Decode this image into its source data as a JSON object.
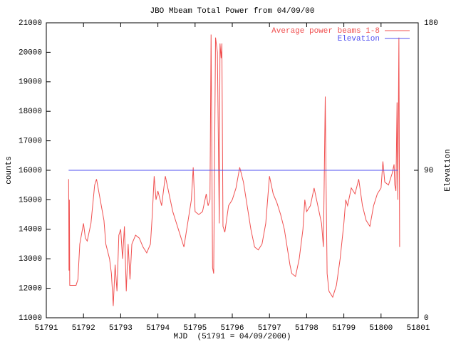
{
  "chart_data": {
    "type": "line",
    "title": "JBO Mbeam Total Power from 04/09/00",
    "x_label": "MJD  (51791 = 04/09/2000)",
    "y_label": "counts",
    "y2_label": "Elevation",
    "xlim": [
      51791,
      51801
    ],
    "xticks": [
      51791,
      51792,
      51793,
      51794,
      51795,
      51796,
      51797,
      51798,
      51799,
      51800,
      51801
    ],
    "ylim": [
      11000,
      21000
    ],
    "yticks": [
      11000,
      12000,
      13000,
      14000,
      15000,
      16000,
      17000,
      18000,
      19000,
      20000,
      21000
    ],
    "y2lim": [
      0,
      180
    ],
    "y2ticks": [
      0,
      90,
      180
    ],
    "grid": false,
    "legend": "top-right",
    "series": [
      {
        "name": "Average power beams 1-8",
        "color": "#f05050",
        "x": [
          51791.6,
          51791.61,
          51791.62,
          51791.63,
          51791.65,
          51791.7,
          51791.8,
          51791.85,
          51791.9,
          51792.0,
          51792.05,
          51792.1,
          51792.2,
          51792.3,
          51792.35,
          51792.45,
          51792.55,
          51792.6,
          51792.7,
          51792.75,
          51792.8,
          51792.85,
          51792.9,
          51792.95,
          51793.0,
          51793.05,
          51793.1,
          51793.15,
          51793.2,
          51793.25,
          51793.3,
          51793.4,
          51793.5,
          51793.6,
          51793.7,
          51793.8,
          51793.85,
          51793.9,
          51793.95,
          51794.0,
          51794.1,
          51794.2,
          51794.3,
          51794.4,
          51794.5,
          51794.6,
          51794.7,
          51794.8,
          51794.9,
          51794.95,
          51795.0,
          51795.1,
          51795.2,
          51795.3,
          51795.35,
          51795.4,
          51795.43,
          51795.47,
          51795.5,
          51795.55,
          51795.6,
          51795.65,
          51795.67,
          51795.7,
          51795.72,
          51795.75,
          51795.8,
          51795.9,
          51796.0,
          51796.1,
          51796.2,
          51796.3,
          51796.4,
          51796.5,
          51796.6,
          51796.7,
          51796.8,
          51796.9,
          51796.95,
          51797.0,
          51797.1,
          51797.2,
          51797.3,
          51797.4,
          51797.5,
          51797.55,
          51797.6,
          51797.7,
          51797.8,
          51797.9,
          51797.95,
          51798.0,
          51798.1,
          51798.2,
          51798.3,
          51798.4,
          51798.45,
          51798.5,
          51798.52,
          51798.55,
          51798.6,
          51798.7,
          51798.8,
          51798.9,
          51799.0,
          51799.05,
          51799.1,
          51799.2,
          51799.3,
          51799.4,
          51799.5,
          51799.6,
          51799.7,
          51799.8,
          51799.9,
          51800.0,
          51800.05,
          51800.1,
          51800.2,
          51800.3,
          51800.35,
          51800.37,
          51800.4,
          51800.43,
          51800.45,
          51800.48,
          51800.5
        ],
        "values": [
          15700,
          12600,
          15000,
          12100,
          12100,
          12100,
          12100,
          12300,
          13500,
          14200,
          13700,
          13600,
          14200,
          15500,
          15700,
          15000,
          14300,
          13500,
          13000,
          12500,
          11400,
          12800,
          11900,
          13800,
          14000,
          13000,
          14100,
          11900,
          13500,
          12300,
          13500,
          13800,
          13700,
          13400,
          13200,
          13500,
          14500,
          15800,
          15000,
          15300,
          14800,
          15800,
          15200,
          14600,
          14200,
          13800,
          13400,
          14200,
          15000,
          16100,
          14600,
          14500,
          14600,
          15200,
          14800,
          15000,
          20600,
          12700,
          12500,
          20500,
          20000,
          14200,
          20300,
          19800,
          20300,
          14100,
          13900,
          14800,
          15000,
          15400,
          16100,
          15600,
          14800,
          14000,
          13400,
          13300,
          13500,
          14200,
          15000,
          15800,
          15200,
          14900,
          14500,
          14000,
          13200,
          12800,
          12500,
          12400,
          13000,
          14000,
          15000,
          14600,
          14800,
          15400,
          14800,
          14200,
          13400,
          18500,
          15800,
          12500,
          11900,
          11700,
          12100,
          13000,
          14200,
          15000,
          14800,
          15400,
          15200,
          15700,
          14800,
          14300,
          14100,
          14800,
          15200,
          15400,
          16300,
          15600,
          15500,
          15900,
          16200,
          15500,
          15300,
          18300,
          15000,
          20500,
          13400
        ]
      },
      {
        "name": "Elevation",
        "color": "#5050f0",
        "axis": "y2",
        "x": [
          51791.6,
          51800.45
        ],
        "values": [
          90,
          90
        ]
      }
    ]
  }
}
